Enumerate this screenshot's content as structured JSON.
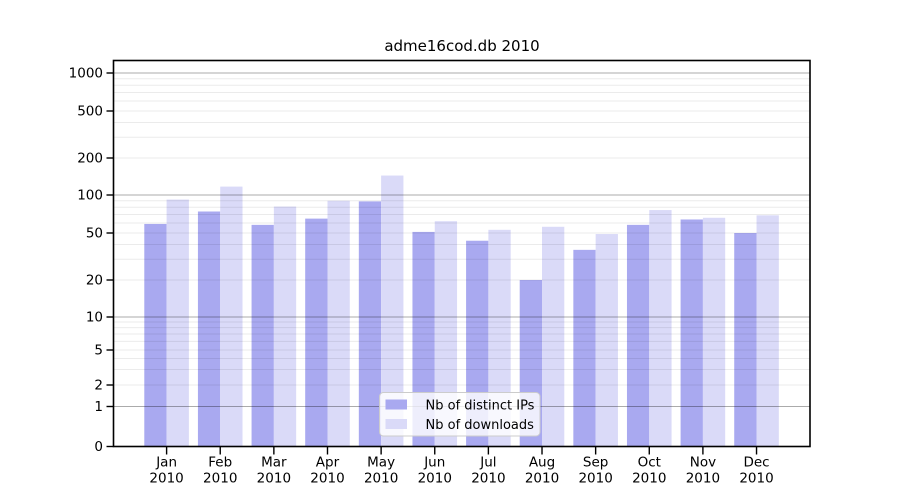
{
  "title": "adme16cod.db 2010",
  "chart_data": {
    "type": "bar",
    "title": "adme16cod.db 2010",
    "categories": [
      "Jan 2010",
      "Feb 2010",
      "Mar 2010",
      "Apr 2010",
      "May 2010",
      "Jun 2010",
      "Jul 2010",
      "Aug 2010",
      "Sep 2010",
      "Oct 2010",
      "Nov 2010",
      "Dec 2010"
    ],
    "series": [
      {
        "name": "Nb of distinct IPs",
        "color": "#a9a9f0",
        "values": [
          59,
          74,
          58,
          65,
          89,
          51,
          43,
          20,
          36,
          58,
          64,
          50
        ]
      },
      {
        "name": "Nb of downloads",
        "color": "#dadaf8",
        "values": [
          92,
          117,
          81,
          90,
          144,
          62,
          53,
          56,
          49,
          76,
          66,
          69
        ]
      }
    ],
    "xlabel": "",
    "ylabel": "",
    "yticks": [
      0,
      1,
      2,
      5,
      10,
      20,
      50,
      100,
      200,
      500,
      1000
    ],
    "ylim": [
      0,
      1500
    ],
    "yaxis_scale": "log-like with zero baseline",
    "grid": "horizontal major and minor gridlines drawn over bars",
    "legend": {
      "position": "inside lower center",
      "entries": [
        "Nb of distinct IPs",
        "Nb of downloads"
      ]
    }
  },
  "colors": {
    "background": "#ffffff",
    "axis": "#000000",
    "grid_major": "#a8a8a8",
    "grid_minor": "#ececec",
    "legend_border": "#cccccc",
    "legend_background": "rgba(255,255,255,0.8)"
  }
}
